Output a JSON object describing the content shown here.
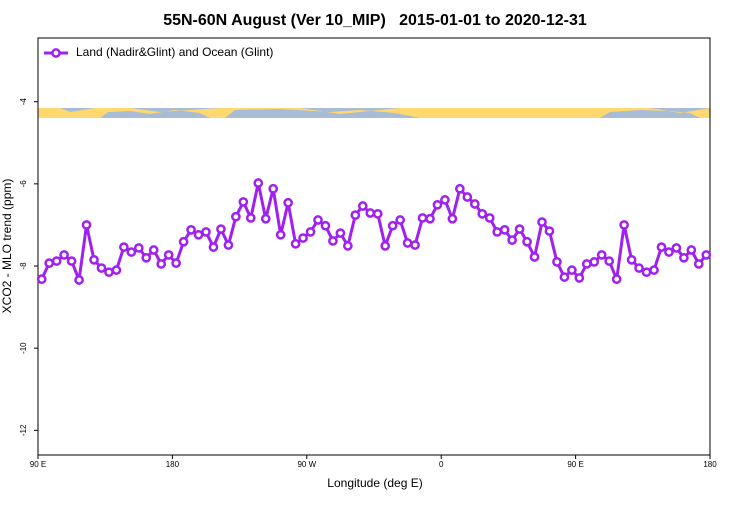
{
  "chart_data": {
    "type": "line",
    "title": "55N-60N August (Ver 10_MIP)   2015-01-01 to 2020-12-31",
    "xlabel": "Longitude (deg E)",
    "ylabel": "XCO2 - MLO trend (ppm)",
    "x": [
      92.5,
      97.5,
      102.5,
      107.5,
      112.5,
      117.5,
      122.5,
      127.5,
      132.5,
      137.5,
      142.5,
      147.5,
      152.5,
      157.5,
      162.5,
      167.5,
      172.5,
      177.5,
      182.5,
      187.5,
      192.5,
      197.5,
      202.5,
      207.5,
      212.5,
      217.5,
      222.5,
      227.5,
      232.5,
      237.5,
      242.5,
      247.5,
      252.5,
      257.5,
      262.5,
      267.5,
      272.5,
      277.5,
      282.5,
      287.5,
      292.5,
      297.5,
      302.5,
      307.5,
      312.5,
      317.5,
      322.5,
      327.5,
      332.5,
      337.5,
      342.5,
      347.5,
      352.5,
      357.5,
      362.5,
      367.5,
      372.5,
      377.5,
      382.5,
      387.5,
      392.5,
      397.5,
      402.5,
      407.5,
      412.5,
      417.5,
      422.5,
      427.5,
      432.5,
      437.5,
      442.5,
      447.5,
      452.5,
      457.5,
      462.5,
      467.5,
      472.5,
      477.5,
      482.5,
      487.5,
      492.5,
      497.5,
      502.5,
      507.5,
      512.5,
      517.5,
      522.5,
      527.5,
      532.5,
      537.5
    ],
    "series": [
      {
        "name": "Land (Nadir&Glint) and Ocean (Glint)",
        "color": "#a020f0",
        "values": [
          -8.32,
          -7.93,
          -7.88,
          -7.73,
          -7.88,
          -8.34,
          -7.0,
          -7.85,
          -8.05,
          -8.15,
          -8.1,
          -7.54,
          -7.66,
          -7.56,
          -7.8,
          -7.61,
          -7.95,
          -7.73,
          -7.93,
          -7.41,
          -7.12,
          -7.24,
          -7.17,
          -7.54,
          -7.1,
          -7.49,
          -6.8,
          -6.44,
          -6.83,
          -5.98,
          -6.85,
          -6.12,
          -7.24,
          -6.46,
          -7.46,
          -7.32,
          -7.17,
          -6.88,
          -7.02,
          -7.39,
          -7.2,
          -7.51,
          -6.76,
          -6.54,
          -6.71,
          -6.73,
          -7.51,
          -7.02,
          -6.88,
          -7.44,
          -7.49,
          -6.83,
          -6.85,
          -6.51,
          -6.39,
          -6.85,
          -6.12,
          -6.32,
          -6.49,
          -6.73,
          -6.83,
          -7.17,
          -7.12,
          -7.37,
          -7.1,
          -7.41,
          -7.78,
          -6.93,
          -7.15,
          -7.9,
          -8.27,
          -8.1,
          -8.29,
          -7.95,
          -7.9,
          -7.73,
          -7.88,
          -8.32,
          -7.0,
          -7.85,
          -8.05,
          -8.15,
          -8.1,
          -7.54,
          -7.66,
          -7.56,
          -7.8,
          -7.61,
          -7.95,
          -7.73
        ]
      }
    ],
    "xlim": [
      90,
      540
    ],
    "xticks": [
      {
        "value": 90,
        "label": "90 E"
      },
      {
        "value": 180,
        "label": "180"
      },
      {
        "value": 270,
        "label": "90 W"
      },
      {
        "value": 360,
        "label": "0"
      },
      {
        "value": 450,
        "label": "90 E"
      },
      {
        "value": 540,
        "label": "180"
      }
    ],
    "ylim": [
      -12.6,
      -2.45
    ],
    "yticks": [
      -4,
      -6,
      -8,
      -10,
      -12
    ],
    "legend": "top-left",
    "grid": false
  }
}
